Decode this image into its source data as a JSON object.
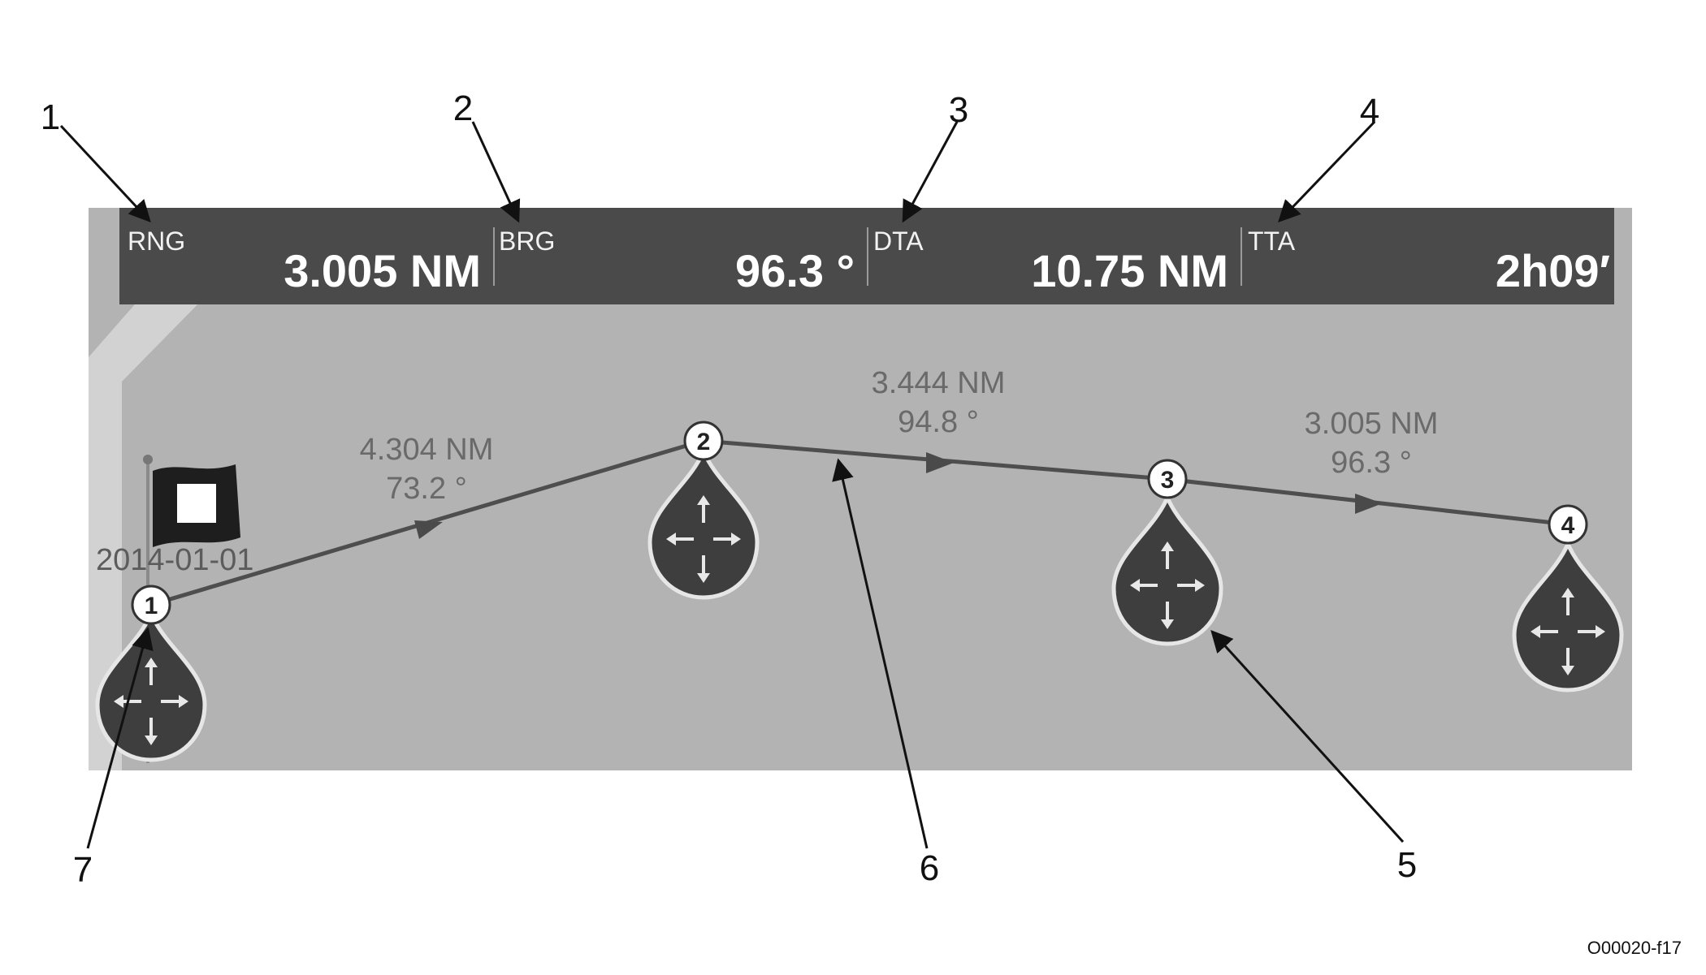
{
  "data_bar": {
    "rng": {
      "label": "RNG",
      "value": "3.005 NM"
    },
    "brg": {
      "label": "BRG",
      "value": "96.3 °"
    },
    "dta": {
      "label": "DTA",
      "value": "10.75 NM"
    },
    "tta": {
      "label": "TTA",
      "value": "2h09′"
    }
  },
  "route": {
    "legs": [
      {
        "distance": "4.304 NM",
        "bearing": "73.2 °"
      },
      {
        "distance": "3.444 NM",
        "bearing": "94.8 °"
      },
      {
        "distance": "3.005 NM",
        "bearing": "96.3 °"
      }
    ],
    "waypoints": [
      "1",
      "2",
      "3",
      "4"
    ],
    "start_date": "2014-01-01"
  },
  "callouts": [
    "1",
    "2",
    "3",
    "4",
    "5",
    "6",
    "7"
  ],
  "figure_id": "O00020-f17",
  "colors": {
    "map_bg": "#b3b3b3",
    "data_bar_bg": "#4a4a4a",
    "route_line": "#4e4e4e",
    "waypoint_marker": "#3e3e3e"
  }
}
